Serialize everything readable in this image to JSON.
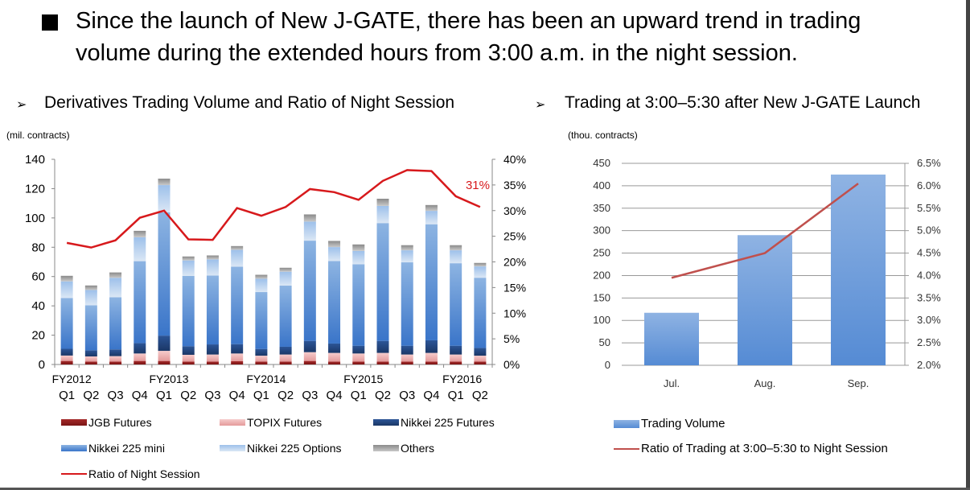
{
  "title": {
    "line1": "Since the launch of New J-GATE, there has been an upward trend in trading",
    "line2": "volume during the extended hours from 3:00 a.m. in the night session."
  },
  "left_panel": {
    "arrow": "➢",
    "heading": "Derivatives Trading Volume and Ratio of Night Session",
    "unit": "(mil. contracts)"
  },
  "right_panel": {
    "arrow": "➢",
    "heading": "Trading at 3:00–5:30 after New J-GATE Launch",
    "unit": "(thou. contracts)"
  },
  "chart_data": [
    {
      "type": "bar",
      "stacked": true,
      "categories": [
        "Q1",
        "Q2",
        "Q3",
        "Q4",
        "Q1",
        "Q2",
        "Q3",
        "Q4",
        "Q1",
        "Q2",
        "Q3",
        "Q4",
        "Q1",
        "Q2",
        "Q3",
        "Q4",
        "Q1",
        "Q2"
      ],
      "fiscal_year_labels": [
        "FY2012",
        "FY2013",
        "FY2014",
        "FY2015",
        "FY2016"
      ],
      "ylim": [
        0,
        140
      ],
      "yticks": [
        0,
        20,
        40,
        60,
        80,
        100,
        120,
        140
      ],
      "y2lim": [
        0,
        40
      ],
      "y2ticks": [
        "0%",
        "5%",
        "10%",
        "15%",
        "20%",
        "25%",
        "30%",
        "35%",
        "40%"
      ],
      "grid": false,
      "legend_position": "bottom",
      "series": [
        {
          "name": "JGB Futures",
          "color": "#8b1c1c",
          "values": [
            2.4,
            2.0,
            2.0,
            2.4,
            2.4,
            2.0,
            2.0,
            2.2,
            2.0,
            2.0,
            2.4,
            2.0,
            2.0,
            2.0,
            2.0,
            2.0,
            2.0,
            2.0
          ]
        },
        {
          "name": "TOPIX Futures",
          "color": "#f0b4b4",
          "values": [
            3.7,
            3.5,
            3.7,
            5.1,
            6.9,
            4.6,
            4.8,
            5.3,
            4.0,
            4.8,
            6.0,
            5.9,
            5.5,
            5.9,
            4.8,
            5.9,
            4.8,
            4.0
          ]
        },
        {
          "name": "Nikkei 225 Futures",
          "color": "#1f3f75",
          "values": [
            4.6,
            4.2,
            4.6,
            7.1,
            10.4,
            5.9,
            6.9,
            6.4,
            4.6,
            5.3,
            7.7,
            6.4,
            5.3,
            8.2,
            6.0,
            8.6,
            6.0,
            5.3
          ]
        },
        {
          "name": "Nikkei 225 mini",
          "color": "#4a82d4",
          "values": [
            34.7,
            30.7,
            35.6,
            55.9,
            84.1,
            47.9,
            47.0,
            52.8,
            38.8,
            41.7,
            68.4,
            56.3,
            55.6,
            80.4,
            56.9,
            79.2,
            56.3,
            47.9
          ]
        },
        {
          "name": "Nikkei 225 Options",
          "color": "#c6d9f0",
          "values": [
            11.3,
            10.4,
            13.2,
            16.3,
            18.6,
            10.6,
            11.0,
            11.5,
            9.1,
            9.5,
            13.0,
            9.5,
            9.1,
            11.7,
            8.2,
            9.1,
            8.8,
            7.7
          ]
        },
        {
          "name": "Others",
          "color": "#a6a6a6",
          "values": [
            3.8,
            3.1,
            3.7,
            4.4,
            4.4,
            2.7,
            2.7,
            2.6,
            2.7,
            2.7,
            4.9,
            4.2,
            4.4,
            4.9,
            3.5,
            4.0,
            3.5,
            2.4
          ]
        }
      ],
      "line": {
        "name": "Ratio of Night Session",
        "color": "#d7191c",
        "axis": "right",
        "values": [
          23.7,
          22.8,
          24.2,
          28.6,
          30.0,
          24.4,
          24.3,
          30.5,
          29.0,
          30.7,
          34.2,
          33.6,
          32.1,
          35.8,
          37.9,
          37.7,
          32.8,
          30.7
        ]
      },
      "annotation": "31%"
    },
    {
      "type": "bar",
      "categories": [
        "Jul.",
        "Aug.",
        "Sep."
      ],
      "ylim": [
        0,
        450
      ],
      "yticks": [
        0,
        50,
        100,
        150,
        200,
        250,
        300,
        350,
        400,
        450
      ],
      "y2lim": [
        2.0,
        6.5
      ],
      "y2ticks": [
        "2.0%",
        "2.5%",
        "3.0%",
        "3.5%",
        "4.0%",
        "4.5%",
        "5.0%",
        "5.5%",
        "6.0%",
        "6.5%"
      ],
      "grid": true,
      "legend_position": "bottom",
      "series": [
        {
          "name": "Trading Volume",
          "color": "#5b8fd6",
          "values": [
            117,
            290,
            425
          ]
        }
      ],
      "line": {
        "name": "Ratio of Trading at 3:00–5:30 to Night Session",
        "color": "#c0504d",
        "axis": "right",
        "values": [
          3.95,
          4.5,
          6.05
        ]
      }
    }
  ]
}
